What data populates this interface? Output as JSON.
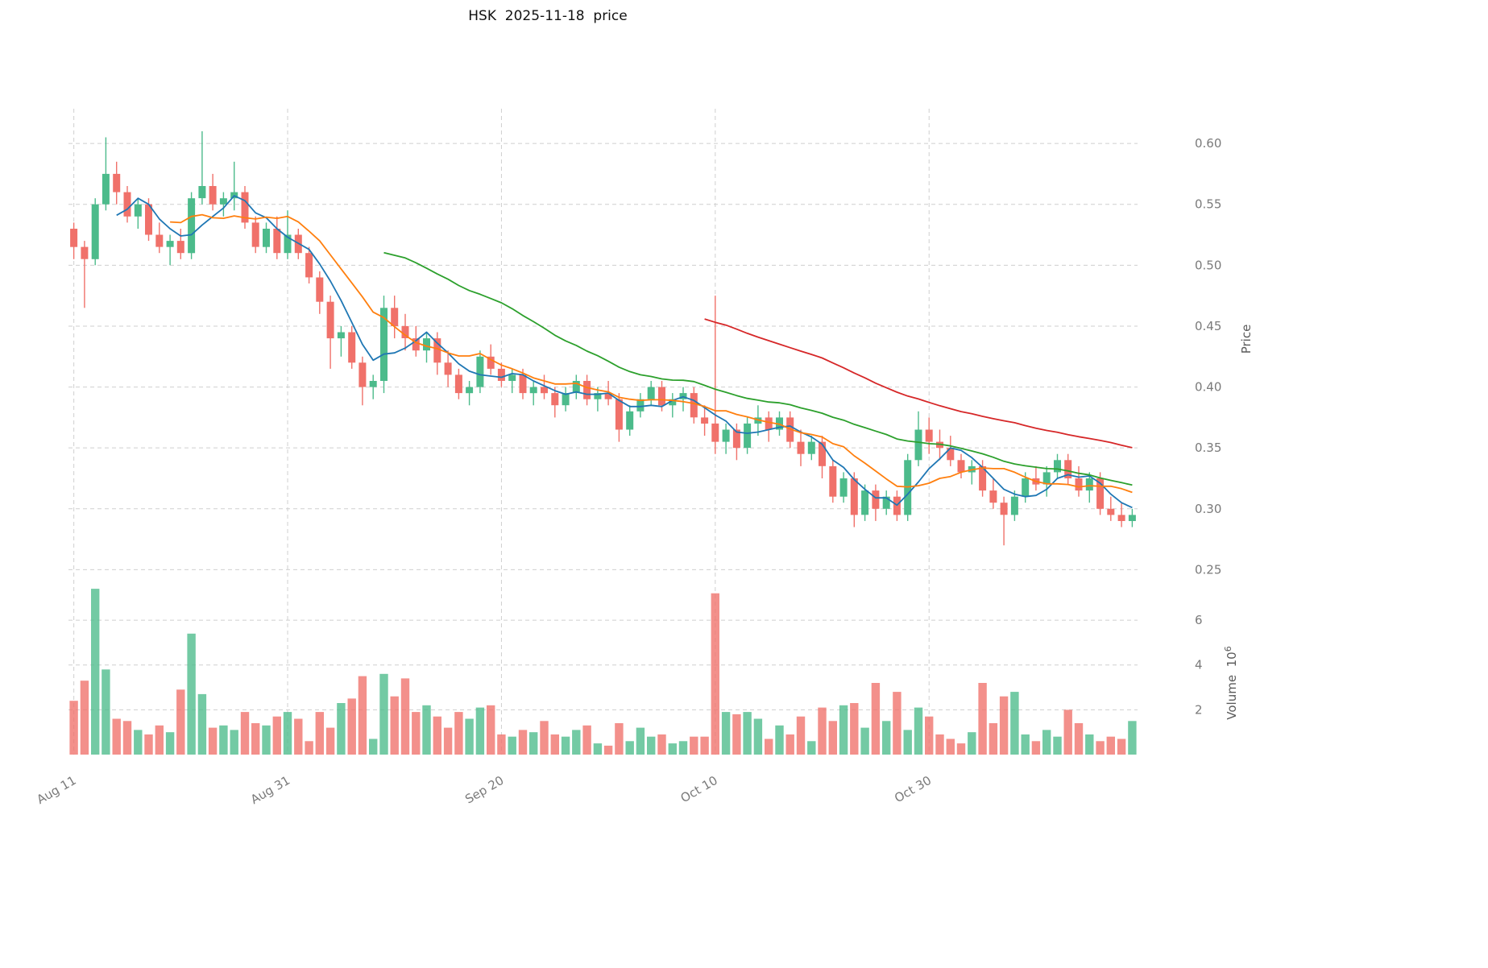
{
  "title": "HSK  2025-11-18  price",
  "axes": {
    "price_label": "Price",
    "volume_label": "Volume",
    "volume_unit_base": "10",
    "volume_unit_exp": "6"
  },
  "chart_data": {
    "type": "candlestick",
    "title": "HSK  2025-11-18  price",
    "xlabel": "",
    "ylabel": "Price",
    "ylabel_secondary": "Volume 10^6",
    "grid": true,
    "price_ylim": [
      0.243,
      0.6285
    ],
    "volume_ylim": [
      0,
      7.62
    ],
    "price_ticks": [
      "0.25",
      "0.30",
      "0.35",
      "0.40",
      "0.45",
      "0.50",
      "0.55",
      "0.60"
    ],
    "volume_ticks": [
      "2",
      "4",
      "6"
    ],
    "x_ticks": [
      {
        "index": 0,
        "label": "Aug 11"
      },
      {
        "index": 20,
        "label": "Aug 31"
      },
      {
        "index": 40,
        "label": "Sep 20"
      },
      {
        "index": 60,
        "label": "Oct 10"
      },
      {
        "index": 80,
        "label": "Oct 30"
      }
    ],
    "colors": {
      "up": "#4cbb8b",
      "down": "#f0716a",
      "grid": "#cfcfcf",
      "tick_text": "#7a7a7a"
    },
    "moving_averages": [
      {
        "period": 5,
        "color": "#1f77b4"
      },
      {
        "period": 10,
        "color": "#ff7f0e"
      },
      {
        "period": 30,
        "color": "#2ca02c"
      },
      {
        "period": 60,
        "color": "#d62728"
      }
    ],
    "candle_columns": [
      "open",
      "high",
      "low",
      "close",
      "volume_millions"
    ],
    "candles": [
      [
        0.53,
        0.535,
        0.505,
        0.515,
        2.4
      ],
      [
        0.515,
        0.52,
        0.465,
        0.505,
        3.3
      ],
      [
        0.505,
        0.555,
        0.5,
        0.55,
        7.4
      ],
      [
        0.55,
        0.605,
        0.545,
        0.575,
        3.8
      ],
      [
        0.575,
        0.585,
        0.55,
        0.56,
        1.6
      ],
      [
        0.56,
        0.565,
        0.535,
        0.54,
        1.5
      ],
      [
        0.54,
        0.555,
        0.53,
        0.55,
        1.1
      ],
      [
        0.55,
        0.555,
        0.52,
        0.525,
        0.9
      ],
      [
        0.525,
        0.535,
        0.51,
        0.515,
        1.3
      ],
      [
        0.515,
        0.525,
        0.5,
        0.52,
        1.0
      ],
      [
        0.52,
        0.53,
        0.505,
        0.51,
        2.9
      ],
      [
        0.51,
        0.56,
        0.505,
        0.555,
        5.4
      ],
      [
        0.555,
        0.61,
        0.55,
        0.565,
        2.7
      ],
      [
        0.565,
        0.575,
        0.545,
        0.55,
        1.2
      ],
      [
        0.55,
        0.56,
        0.54,
        0.555,
        1.3
      ],
      [
        0.555,
        0.585,
        0.545,
        0.56,
        1.1
      ],
      [
        0.56,
        0.565,
        0.53,
        0.535,
        1.9
      ],
      [
        0.535,
        0.54,
        0.51,
        0.515,
        1.4
      ],
      [
        0.515,
        0.535,
        0.51,
        0.53,
        1.3
      ],
      [
        0.53,
        0.54,
        0.505,
        0.51,
        1.7
      ],
      [
        0.51,
        0.545,
        0.505,
        0.525,
        1.9
      ],
      [
        0.525,
        0.53,
        0.505,
        0.51,
        1.6
      ],
      [
        0.51,
        0.515,
        0.485,
        0.49,
        0.6
      ],
      [
        0.49,
        0.495,
        0.46,
        0.47,
        1.9
      ],
      [
        0.47,
        0.475,
        0.415,
        0.44,
        1.2
      ],
      [
        0.44,
        0.45,
        0.425,
        0.445,
        2.3
      ],
      [
        0.445,
        0.45,
        0.415,
        0.42,
        2.5
      ],
      [
        0.42,
        0.425,
        0.385,
        0.4,
        3.5
      ],
      [
        0.4,
        0.41,
        0.39,
        0.405,
        0.7
      ],
      [
        0.405,
        0.475,
        0.395,
        0.465,
        3.6
      ],
      [
        0.465,
        0.475,
        0.44,
        0.45,
        2.6
      ],
      [
        0.45,
        0.46,
        0.43,
        0.44,
        3.4
      ],
      [
        0.44,
        0.45,
        0.425,
        0.43,
        1.9
      ],
      [
        0.43,
        0.445,
        0.42,
        0.44,
        2.2
      ],
      [
        0.44,
        0.445,
        0.41,
        0.42,
        1.7
      ],
      [
        0.42,
        0.43,
        0.4,
        0.41,
        1.2
      ],
      [
        0.41,
        0.415,
        0.39,
        0.395,
        1.9
      ],
      [
        0.395,
        0.405,
        0.385,
        0.4,
        1.6
      ],
      [
        0.4,
        0.43,
        0.395,
        0.425,
        2.1
      ],
      [
        0.425,
        0.435,
        0.41,
        0.415,
        2.2
      ],
      [
        0.415,
        0.42,
        0.4,
        0.405,
        0.9
      ],
      [
        0.405,
        0.415,
        0.395,
        0.41,
        0.8
      ],
      [
        0.41,
        0.415,
        0.39,
        0.395,
        1.1
      ],
      [
        0.395,
        0.405,
        0.385,
        0.4,
        1.0
      ],
      [
        0.4,
        0.41,
        0.39,
        0.395,
        1.5
      ],
      [
        0.395,
        0.4,
        0.375,
        0.385,
        0.9
      ],
      [
        0.385,
        0.4,
        0.38,
        0.395,
        0.8
      ],
      [
        0.395,
        0.41,
        0.39,
        0.405,
        1.1
      ],
      [
        0.405,
        0.41,
        0.385,
        0.39,
        1.3
      ],
      [
        0.39,
        0.4,
        0.38,
        0.395,
        0.5
      ],
      [
        0.395,
        0.405,
        0.385,
        0.39,
        0.4
      ],
      [
        0.39,
        0.395,
        0.355,
        0.365,
        1.4
      ],
      [
        0.365,
        0.385,
        0.36,
        0.38,
        0.6
      ],
      [
        0.38,
        0.395,
        0.375,
        0.39,
        1.2
      ],
      [
        0.39,
        0.405,
        0.385,
        0.4,
        0.8
      ],
      [
        0.4,
        0.405,
        0.38,
        0.385,
        0.9
      ],
      [
        0.385,
        0.395,
        0.375,
        0.39,
        0.5
      ],
      [
        0.39,
        0.4,
        0.38,
        0.395,
        0.6
      ],
      [
        0.395,
        0.4,
        0.37,
        0.375,
        0.8
      ],
      [
        0.375,
        0.385,
        0.36,
        0.37,
        0.8
      ],
      [
        0.37,
        0.475,
        0.345,
        0.355,
        7.2
      ],
      [
        0.355,
        0.37,
        0.345,
        0.365,
        1.9
      ],
      [
        0.365,
        0.37,
        0.34,
        0.35,
        1.8
      ],
      [
        0.35,
        0.375,
        0.345,
        0.37,
        1.9
      ],
      [
        0.37,
        0.385,
        0.36,
        0.375,
        1.6
      ],
      [
        0.375,
        0.38,
        0.355,
        0.365,
        0.7
      ],
      [
        0.365,
        0.38,
        0.36,
        0.375,
        1.3
      ],
      [
        0.375,
        0.38,
        0.35,
        0.355,
        0.9
      ],
      [
        0.355,
        0.365,
        0.335,
        0.345,
        1.7
      ],
      [
        0.345,
        0.36,
        0.34,
        0.355,
        0.6
      ],
      [
        0.355,
        0.36,
        0.325,
        0.335,
        2.1
      ],
      [
        0.335,
        0.34,
        0.305,
        0.31,
        1.5
      ],
      [
        0.31,
        0.33,
        0.305,
        0.325,
        2.2
      ],
      [
        0.325,
        0.33,
        0.285,
        0.295,
        2.3
      ],
      [
        0.295,
        0.32,
        0.29,
        0.315,
        1.2
      ],
      [
        0.315,
        0.32,
        0.29,
        0.3,
        3.2
      ],
      [
        0.3,
        0.315,
        0.295,
        0.31,
        1.5
      ],
      [
        0.31,
        0.315,
        0.29,
        0.295,
        2.8
      ],
      [
        0.295,
        0.345,
        0.29,
        0.34,
        1.1
      ],
      [
        0.34,
        0.38,
        0.335,
        0.365,
        2.1
      ],
      [
        0.365,
        0.375,
        0.345,
        0.355,
        1.7
      ],
      [
        0.355,
        0.365,
        0.34,
        0.35,
        0.9
      ],
      [
        0.35,
        0.36,
        0.335,
        0.34,
        0.7
      ],
      [
        0.34,
        0.345,
        0.325,
        0.33,
        0.5
      ],
      [
        0.33,
        0.34,
        0.32,
        0.335,
        1.0
      ],
      [
        0.335,
        0.34,
        0.31,
        0.315,
        3.2
      ],
      [
        0.315,
        0.325,
        0.3,
        0.305,
        1.4
      ],
      [
        0.305,
        0.31,
        0.27,
        0.295,
        2.6
      ],
      [
        0.295,
        0.315,
        0.29,
        0.31,
        2.8
      ],
      [
        0.31,
        0.33,
        0.305,
        0.325,
        0.9
      ],
      [
        0.325,
        0.335,
        0.315,
        0.32,
        0.6
      ],
      [
        0.32,
        0.335,
        0.31,
        0.33,
        1.1
      ],
      [
        0.33,
        0.345,
        0.325,
        0.34,
        0.8
      ],
      [
        0.34,
        0.345,
        0.32,
        0.325,
        2.0
      ],
      [
        0.325,
        0.335,
        0.31,
        0.315,
        1.4
      ],
      [
        0.315,
        0.33,
        0.305,
        0.325,
        0.9
      ],
      [
        0.325,
        0.33,
        0.295,
        0.3,
        0.6
      ],
      [
        0.3,
        0.31,
        0.29,
        0.295,
        0.8
      ],
      [
        0.295,
        0.305,
        0.285,
        0.29,
        0.7
      ],
      [
        0.29,
        0.3,
        0.285,
        0.295,
        1.5
      ]
    ]
  }
}
